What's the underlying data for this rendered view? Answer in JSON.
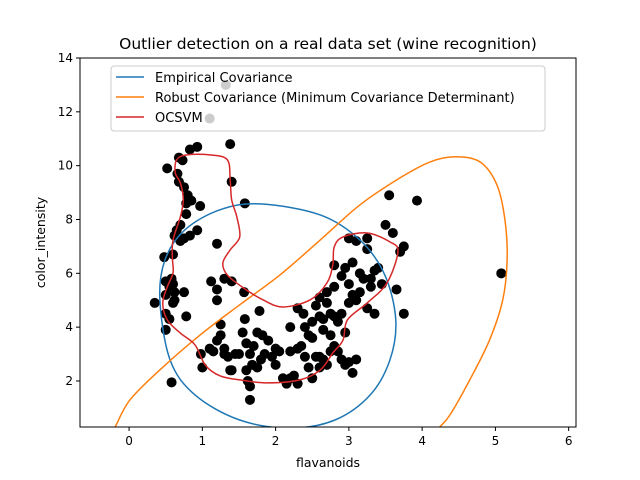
{
  "chart_data": {
    "type": "scatter",
    "title": "Outlier detection on a real data set (wine recognition)",
    "xlabel": "flavanoids",
    "ylabel": "color_intensity",
    "xlim": [
      -0.67,
      6.1
    ],
    "ylim": [
      0.29,
      14
    ],
    "xticks": [
      0,
      1,
      2,
      3,
      4,
      5,
      6
    ],
    "yticks": [
      2,
      4,
      6,
      8,
      10,
      12,
      14
    ],
    "grid": false,
    "legend_placement": "upper-center",
    "point_color": "#000000",
    "points": [
      [
        0.52,
        9.9
      ],
      [
        0.68,
        10.3
      ],
      [
        0.73,
        10.2
      ],
      [
        0.83,
        10.6
      ],
      [
        0.93,
        10.7
      ],
      [
        0.66,
        9.7
      ],
      [
        0.68,
        9.4
      ],
      [
        0.75,
        9.2
      ],
      [
        0.8,
        8.9
      ],
      [
        0.78,
        8.6
      ],
      [
        0.85,
        8.7
      ],
      [
        0.97,
        8.5
      ],
      [
        0.78,
        8.2
      ],
      [
        0.7,
        7.8
      ],
      [
        0.65,
        7.6
      ],
      [
        0.62,
        7.4
      ],
      [
        0.7,
        7.2
      ],
      [
        0.75,
        7.3
      ],
      [
        0.83,
        7.4
      ],
      [
        0.93,
        7.6
      ],
      [
        0.6,
        6.7
      ],
      [
        0.48,
        6.6
      ],
      [
        0.5,
        5.7
      ],
      [
        0.55,
        5.5
      ],
      [
        0.6,
        5.6
      ],
      [
        0.58,
        5.8
      ],
      [
        0.62,
        5.3
      ],
      [
        0.75,
        5.3
      ],
      [
        0.5,
        5.2
      ],
      [
        0.35,
        4.9
      ],
      [
        0.6,
        4.9
      ],
      [
        0.62,
        5.0
      ],
      [
        0.5,
        4.5
      ],
      [
        0.55,
        4.3
      ],
      [
        0.5,
        3.9
      ],
      [
        0.78,
        4.4
      ],
      [
        0.58,
        1.95
      ],
      [
        1.0,
        2.5
      ],
      [
        0.98,
        3.0
      ],
      [
        1.1,
        3.2
      ],
      [
        1.15,
        3.1
      ],
      [
        1.25,
        4.1
      ],
      [
        1.3,
        3.2
      ],
      [
        1.35,
        2.9
      ],
      [
        1.4,
        2.4
      ],
      [
        1.5,
        3.0
      ],
      [
        1.55,
        3.8
      ],
      [
        1.6,
        2.4
      ],
      [
        1.62,
        2.0
      ],
      [
        1.65,
        1.8
      ],
      [
        1.65,
        1.3
      ],
      [
        1.68,
        2.6
      ],
      [
        1.75,
        2.5
      ],
      [
        1.8,
        2.8
      ],
      [
        1.85,
        3.0
      ],
      [
        1.75,
        3.8
      ],
      [
        1.82,
        3.7
      ],
      [
        1.9,
        3.5
      ],
      [
        1.95,
        2.9
      ],
      [
        2.0,
        3.2
      ],
      [
        2.05,
        3.1
      ],
      [
        2.0,
        2.6
      ],
      [
        2.1,
        2.1
      ],
      [
        2.15,
        1.9
      ],
      [
        2.2,
        2.1
      ],
      [
        2.3,
        1.9
      ],
      [
        2.25,
        2.2
      ],
      [
        2.2,
        3.1
      ],
      [
        2.3,
        3.2
      ],
      [
        2.35,
        3.3
      ],
      [
        2.4,
        2.9
      ],
      [
        2.45,
        2.5
      ],
      [
        2.5,
        2.1
      ],
      [
        2.55,
        2.9
      ],
      [
        2.6,
        2.9
      ],
      [
        2.65,
        2.8
      ],
      [
        2.6,
        2.5
      ],
      [
        2.7,
        2.6
      ],
      [
        2.75,
        3.1
      ],
      [
        2.85,
        3.1
      ],
      [
        2.9,
        2.8
      ],
      [
        2.95,
        2.6
      ],
      [
        3.05,
        2.3
      ],
      [
        3.0,
        2.7
      ],
      [
        3.1,
        2.8
      ],
      [
        2.2,
        4.0
      ],
      [
        2.3,
        4.7
      ],
      [
        2.38,
        4.5
      ],
      [
        2.4,
        4.0
      ],
      [
        2.45,
        3.7
      ],
      [
        2.5,
        3.6
      ],
      [
        2.5,
        4.2
      ],
      [
        2.55,
        4.8
      ],
      [
        2.6,
        4.4
      ],
      [
        2.65,
        4.3
      ],
      [
        2.7,
        4.9
      ],
      [
        2.75,
        4.5
      ],
      [
        2.8,
        4.4
      ],
      [
        2.65,
        3.9
      ],
      [
        2.75,
        3.7
      ],
      [
        2.8,
        3.3
      ],
      [
        2.85,
        4.2
      ],
      [
        2.6,
        5.1
      ],
      [
        2.7,
        5.3
      ],
      [
        2.8,
        5.5
      ],
      [
        2.9,
        4.5
      ],
      [
        2.95,
        3.8
      ],
      [
        3.0,
        4.9
      ],
      [
        3.05,
        5.2
      ],
      [
        3.1,
        5.0
      ],
      [
        3.15,
        5.3
      ],
      [
        3.0,
        5.6
      ],
      [
        2.9,
        5.9
      ],
      [
        2.95,
        6.2
      ],
      [
        3.05,
        6.4
      ],
      [
        3.15,
        6.0
      ],
      [
        3.2,
        5.8
      ],
      [
        3.3,
        5.8
      ],
      [
        3.35,
        6.1
      ],
      [
        3.4,
        6.2
      ],
      [
        3.3,
        5.5
      ],
      [
        3.25,
        4.7
      ],
      [
        3.35,
        4.5
      ],
      [
        3.45,
        5.6
      ],
      [
        3.1,
        7.2
      ],
      [
        3.25,
        7.3
      ],
      [
        3.25,
        6.9
      ],
      [
        3.0,
        7.3
      ],
      [
        2.8,
        6.3
      ],
      [
        3.5,
        7.8
      ],
      [
        3.55,
        8.9
      ],
      [
        3.6,
        7.5
      ],
      [
        3.75,
        7.0
      ],
      [
        3.7,
        6.8
      ],
      [
        3.65,
        5.4
      ],
      [
        3.75,
        4.5
      ],
      [
        3.93,
        8.7
      ],
      [
        5.08,
        6.0
      ],
      [
        1.1,
        11.75
      ],
      [
        1.32,
        13.0
      ],
      [
        1.38,
        10.8
      ],
      [
        1.4,
        9.4
      ],
      [
        1.2,
        7.1
      ],
      [
        1.58,
        8.6
      ],
      [
        1.12,
        5.7
      ],
      [
        1.2,
        5.4
      ],
      [
        1.2,
        5.0
      ],
      [
        1.3,
        5.8
      ],
      [
        1.4,
        5.7
      ],
      [
        1.57,
        5.3
      ],
      [
        1.58,
        4.3
      ],
      [
        1.78,
        4.6
      ],
      [
        1.38,
        2.4
      ],
      [
        1.25,
        3.7
      ],
      [
        1.3,
        3.0
      ],
      [
        1.45,
        3.0
      ],
      [
        1.6,
        3.4
      ],
      [
        1.65,
        3.0
      ],
      [
        1.7,
        3.3
      ],
      [
        1.2,
        3.5
      ]
    ],
    "series": [
      {
        "name": "Empirical Covariance",
        "color": "#1f77b4",
        "closed": true,
        "contour": [
          [
            1.79,
            8.58
          ],
          [
            2.61,
            8.17
          ],
          [
            3.15,
            7.24
          ],
          [
            3.49,
            5.94
          ],
          [
            3.64,
            4.27
          ],
          [
            3.56,
            2.78
          ],
          [
            3.29,
            1.48
          ],
          [
            2.81,
            0.55
          ],
          [
            2.2,
            0.25
          ],
          [
            1.51,
            0.55
          ],
          [
            0.9,
            1.48
          ],
          [
            0.56,
            2.78
          ],
          [
            0.42,
            5.01
          ],
          [
            0.49,
            6.5
          ],
          [
            0.76,
            7.61
          ],
          [
            1.24,
            8.36
          ]
        ]
      },
      {
        "name": "Robust Covariance (Minimum Covariance Determinant)",
        "color": "#ff7f0e",
        "closed": false,
        "contour": [
          [
            -0.25,
            0.0
          ],
          [
            -0.19,
            0.29
          ],
          [
            0.01,
            1.29
          ],
          [
            0.42,
            2.41
          ],
          [
            0.97,
            3.71
          ],
          [
            1.51,
            4.83
          ],
          [
            2.06,
            5.94
          ],
          [
            2.61,
            7.24
          ],
          [
            3.15,
            8.54
          ],
          [
            3.7,
            9.55
          ],
          [
            4.11,
            10.14
          ],
          [
            4.45,
            10.33
          ],
          [
            4.79,
            10.14
          ],
          [
            5.02,
            9.29
          ],
          [
            5.13,
            7.99
          ],
          [
            5.16,
            6.5
          ],
          [
            5.1,
            5.01
          ],
          [
            4.92,
            3.52
          ],
          [
            4.65,
            2.04
          ],
          [
            4.38,
            0.74
          ],
          [
            4.24,
            0.29
          ],
          [
            4.15,
            0.0
          ]
        ]
      },
      {
        "name": "OCSVM",
        "color": "#d62728",
        "closed": true,
        "contour": [
          [
            0.65,
            10.22
          ],
          [
            0.79,
            10.4
          ],
          [
            1.1,
            10.4
          ],
          [
            1.34,
            10.22
          ],
          [
            1.38,
            9.47
          ],
          [
            1.4,
            8.73
          ],
          [
            1.47,
            8.1
          ],
          [
            1.51,
            7.35
          ],
          [
            1.38,
            6.87
          ],
          [
            1.28,
            6.39
          ],
          [
            1.34,
            5.94
          ],
          [
            1.56,
            5.46
          ],
          [
            1.83,
            5.01
          ],
          [
            2.1,
            4.75
          ],
          [
            2.47,
            5.01
          ],
          [
            2.7,
            5.64
          ],
          [
            2.78,
            6.31
          ],
          [
            2.8,
            6.98
          ],
          [
            2.92,
            7.35
          ],
          [
            3.25,
            7.5
          ],
          [
            3.56,
            7.17
          ],
          [
            3.67,
            6.8
          ],
          [
            3.52,
            5.64
          ],
          [
            3.25,
            4.9
          ],
          [
            2.98,
            4.27
          ],
          [
            2.92,
            3.52
          ],
          [
            2.78,
            3.04
          ],
          [
            2.61,
            2.41
          ],
          [
            2.33,
            2.04
          ],
          [
            1.88,
            1.93
          ],
          [
            1.51,
            2.04
          ],
          [
            1.24,
            2.19
          ],
          [
            1.04,
            2.59
          ],
          [
            0.9,
            3.34
          ],
          [
            0.7,
            3.78
          ],
          [
            0.52,
            4.27
          ],
          [
            0.46,
            4.9
          ],
          [
            0.52,
            5.49
          ],
          [
            0.6,
            6.02
          ],
          [
            0.59,
            6.61
          ],
          [
            0.6,
            7.24
          ],
          [
            0.7,
            8.1
          ],
          [
            0.74,
            8.73
          ],
          [
            0.7,
            9.36
          ],
          [
            0.63,
            9.73
          ]
        ]
      }
    ]
  }
}
